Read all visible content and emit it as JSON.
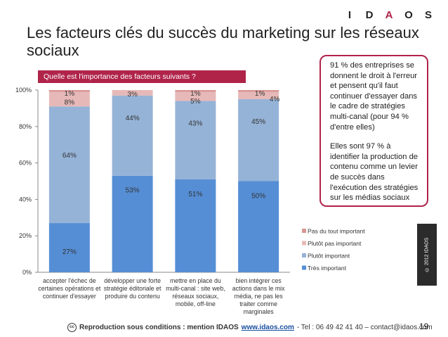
{
  "logo": {
    "letters": [
      "I",
      "D",
      "A",
      "O",
      "S"
    ]
  },
  "title": "Les facteurs clés du succès du marketing sur les réseaux sociaux",
  "question": "Quelle est l'importance des facteurs suivants ?",
  "callout": {
    "paragraph1": "91 % des entreprises se donnent le droit à l'erreur et pensent qu'il faut continuer d'essayer dans le cadre de stratégies multi-canal (pour 94 % d'entre elles)",
    "paragraph2": "Elles sont 97 % à identifier la production de contenu comme un levier de succès dans l'exécution des stratégies sur les médias sociaux"
  },
  "side_copyright": "© 2012 IDAOS",
  "footer": {
    "cc_label": "cc",
    "text_strong": "Reproduction sous conditions : mention IDAOS",
    "link": "www.idaos.com",
    "text_rest": " - Tel : 06 49 42 41 40 – contact@idaos.com"
  },
  "page_number": "19",
  "colors": {
    "tres_important": "#558ed5",
    "plutot_important": "#95b3d7",
    "plutot_pas_important": "#e6b9b8",
    "pas_du_tout_important": "#d99694",
    "accent": "#b0244a"
  },
  "chart_data": {
    "type": "bar",
    "stacked": true,
    "categories": [
      [
        "accepter l'échec de",
        "certaines opérations et",
        "continuer d'essayer"
      ],
      [
        "développer une forte",
        "stratégie éditoriale et",
        "produire du contenu"
      ],
      [
        "mettre en place du",
        "multi-canal : site web,",
        "réseaux sociaux,",
        "mobile, off-line"
      ],
      [
        "bien intégrer ces",
        "actions dans le mix",
        "média, ne pas les",
        "traiter comme",
        "marginales"
      ]
    ],
    "series": [
      {
        "name": "Très important",
        "values": [
          27,
          53,
          51,
          50
        ],
        "labels": [
          "27%",
          "53%",
          "51%",
          "50%"
        ],
        "color": "#558ed5"
      },
      {
        "name": "Plutôt important",
        "values": [
          64,
          44,
          43,
          45
        ],
        "labels": [
          "64%",
          "44%",
          "43%",
          "45%"
        ],
        "color": "#95b3d7"
      },
      {
        "name": "Plutôt pas important",
        "values": [
          8,
          3,
          5,
          4
        ],
        "labels": [
          "8%",
          "3%",
          "5%",
          "4%"
        ],
        "color": "#e6b9b8"
      },
      {
        "name": "Pas du tout important",
        "values": [
          1,
          0,
          1,
          1
        ],
        "labels": [
          "1%",
          "",
          "1%",
          "1%"
        ],
        "color": "#d99694"
      }
    ],
    "yticks": [
      "0%",
      "20%",
      "40%",
      "60%",
      "80%",
      "100%"
    ],
    "ylim": [
      0,
      100
    ],
    "legend_position": "right",
    "legend_order": [
      "Pas du tout important",
      "Plutôt pas important",
      "Plutôt important",
      "Très important"
    ],
    "grid": false
  }
}
